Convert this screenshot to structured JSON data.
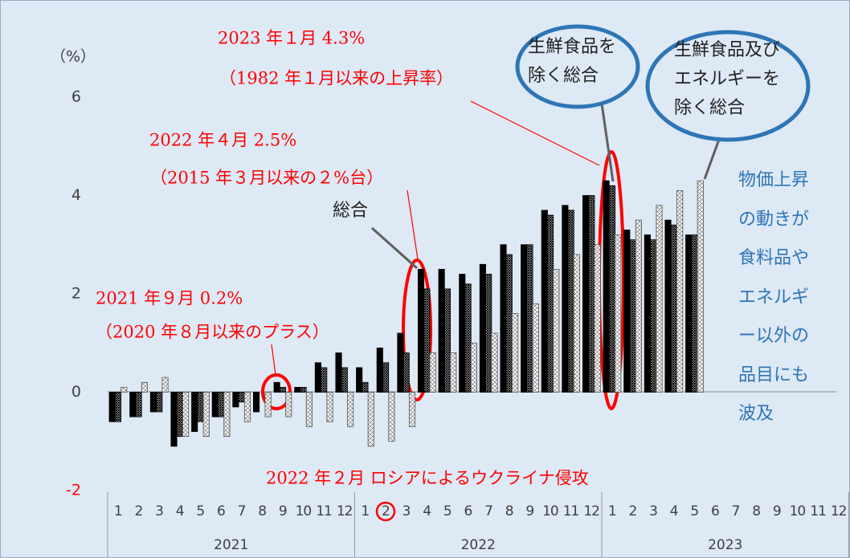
{
  "chart_data": {
    "type": "bar",
    "y_label": "（%）",
    "categories": [
      "1",
      "2",
      "3",
      "4",
      "5",
      "6",
      "7",
      "8",
      "9",
      "10",
      "11",
      "12",
      "1",
      "2",
      "3",
      "4",
      "5",
      "6",
      "7",
      "8",
      "9",
      "10",
      "11",
      "12",
      "1",
      "2",
      "3",
      "4",
      "5",
      "6",
      "7",
      "8",
      "9",
      "10",
      "11",
      "12"
    ],
    "x_groups": [
      "2021",
      "2022",
      "2023"
    ],
    "series": [
      {
        "name": "総合",
        "color": "#000000",
        "pattern": null,
        "values": [
          -0.6,
          -0.5,
          -0.4,
          -1.1,
          -0.8,
          -0.5,
          -0.3,
          -0.4,
          0.2,
          0.1,
          0.6,
          0.8,
          0.5,
          0.9,
          1.2,
          2.5,
          2.5,
          2.4,
          2.6,
          3.0,
          3.0,
          3.7,
          3.8,
          4.0,
          4.3,
          3.3,
          3.2,
          3.5,
          3.2,
          null,
          null,
          null,
          null,
          null,
          null,
          null
        ]
      },
      {
        "name": "生鮮食品を除く総合",
        "color": "#000000",
        "pattern": "hatch",
        "values": [
          -0.6,
          -0.5,
          -0.4,
          -0.9,
          -0.6,
          -0.5,
          -0.2,
          0.0,
          0.1,
          0.1,
          0.5,
          0.5,
          0.2,
          0.6,
          0.8,
          2.1,
          2.1,
          2.2,
          2.4,
          2.8,
          3.0,
          3.6,
          3.7,
          4.0,
          4.2,
          3.1,
          3.1,
          3.4,
          3.2,
          null,
          null,
          null,
          null,
          null,
          null,
          null
        ]
      },
      {
        "name": "生鮮食品及びエネルギーを除く総合",
        "color": "#555555",
        "pattern": "crosshatch",
        "values": [
          0.1,
          0.2,
          0.3,
          -0.9,
          -0.9,
          -0.9,
          -0.6,
          -0.5,
          -0.5,
          -0.7,
          -0.6,
          -0.7,
          -1.1,
          -1.0,
          -0.7,
          0.8,
          0.8,
          1.0,
          1.2,
          1.6,
          1.8,
          2.5,
          2.8,
          3.0,
          3.2,
          3.5,
          3.8,
          4.1,
          4.3,
          null,
          null,
          null,
          null,
          null,
          null,
          null
        ]
      }
    ],
    "ylim": [
      -2,
      6
    ],
    "yticks": [
      -2,
      0,
      2,
      4,
      6
    ],
    "ytick_colors": [
      "#ff0000",
      "#404040",
      "#404040",
      "#404040",
      "#404040"
    ],
    "annotations": [
      "2023 年１月  4.3%",
      "（1982 年１月以来の上昇率）",
      "2022 年４月  2.5%",
      "（2015 年３月以来の２%台）",
      "2021 年９月  0.2%",
      "（2020 年８月以来のプラス）",
      "2022 年２月  ロシアによるウクライナ侵攻"
    ],
    "side_note": "物価上昇の動きが食料品やエネルギー以外の品目にも波及"
  }
}
